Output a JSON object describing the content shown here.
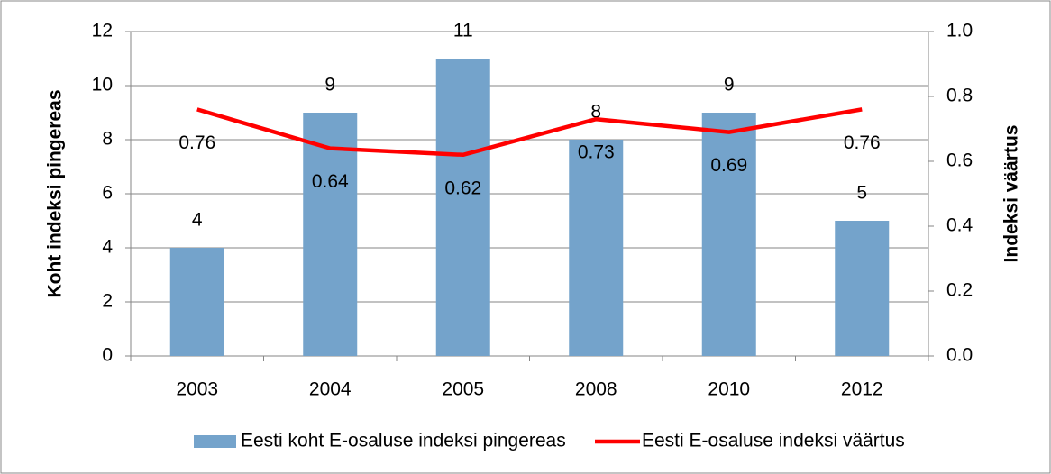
{
  "chart_data": {
    "type": "bar",
    "categories": [
      "2003",
      "2004",
      "2005",
      "2008",
      "2010",
      "2012"
    ],
    "series": [
      {
        "name": "Eesti koht E-osaluse indeksi pingereas",
        "type": "bar",
        "color": "#74a3cb",
        "values": [
          4,
          9,
          11,
          8,
          9,
          5
        ]
      },
      {
        "name": "Eesti E-osaluse indeksi väärtus",
        "type": "line",
        "axis": "y2",
        "color": "#ff0000",
        "values": [
          0.76,
          0.64,
          0.62,
          0.73,
          0.69,
          0.76
        ]
      }
    ],
    "ylabel": "Koht indeksi pingereas",
    "y2label": "Indeksi väärtus",
    "ylim": [
      0,
      12
    ],
    "yticks": [
      0,
      2,
      4,
      6,
      8,
      10,
      12
    ],
    "y2lim": [
      0,
      1
    ],
    "y2ticks": [
      {
        "value": 0,
        "label": "0.0"
      },
      0.2,
      0.4,
      0.6,
      0.8,
      {
        "value": 1,
        "label": "1.0"
      }
    ],
    "grid": true,
    "legend": "bottom"
  }
}
